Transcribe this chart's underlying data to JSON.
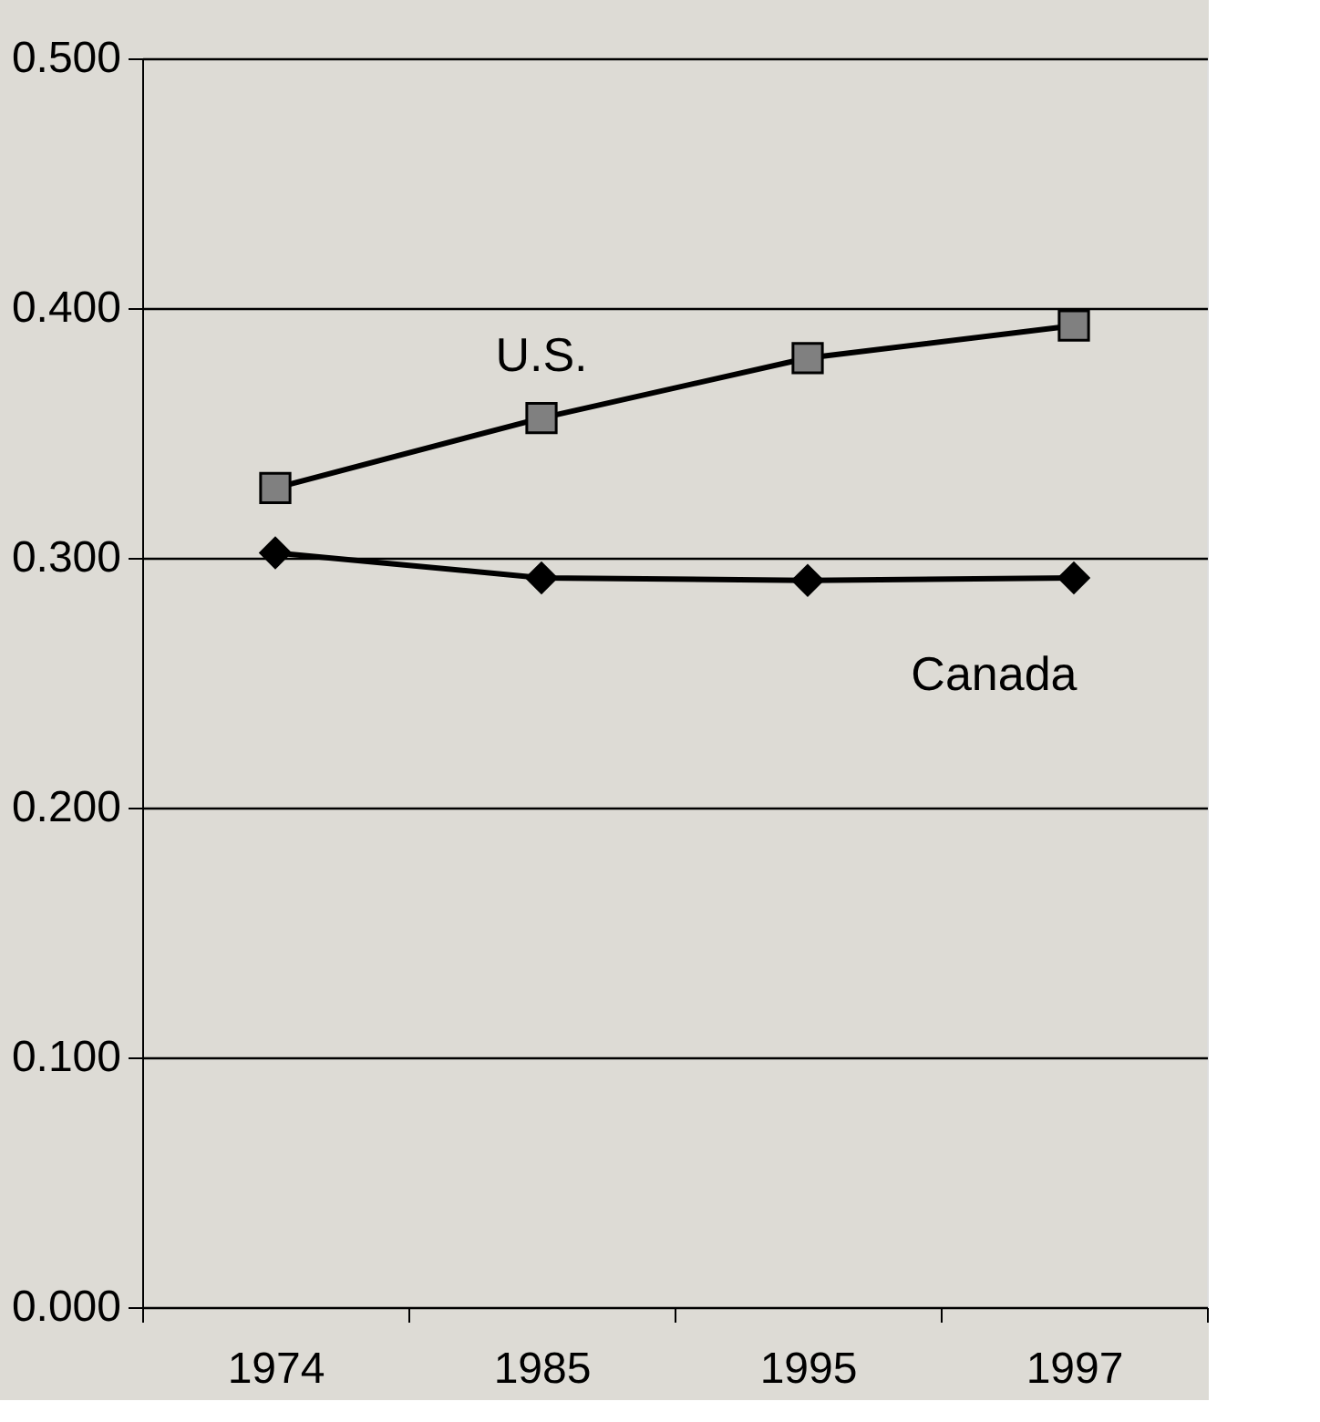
{
  "chart_data": {
    "type": "line",
    "categories": [
      "1974",
      "1985",
      "1995",
      "1997"
    ],
    "series": [
      {
        "name": "U.S.",
        "color": "#000000",
        "marker": "square",
        "values": [
          0.328,
          0.356,
          0.38,
          0.393
        ]
      },
      {
        "name": "Canada",
        "color": "#000000",
        "marker": "diamond",
        "values": [
          0.302,
          0.292,
          0.291,
          0.292
        ]
      }
    ],
    "ylim": [
      0,
      0.5
    ],
    "yticks": [
      {
        "value": 0,
        "label": "0.000"
      },
      {
        "value": 0.1,
        "label": "0.100"
      },
      {
        "value": 0.2,
        "label": "0.200"
      },
      {
        "value": 0.3,
        "label": "0.300"
      },
      {
        "value": 0.4,
        "label": "0.400"
      },
      {
        "value": 0.5,
        "label": "0.500"
      }
    ],
    "grid": "y",
    "line_style": "solid"
  }
}
